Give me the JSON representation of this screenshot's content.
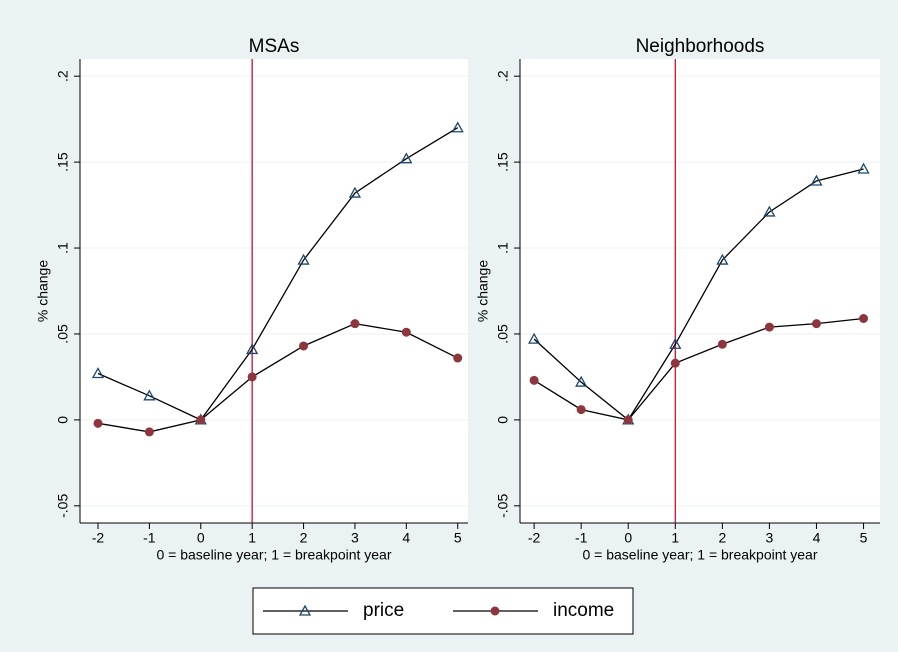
{
  "chart_data": [
    {
      "type": "line",
      "title": "MSAs",
      "x_label": "0 = baseline year; 1 = breakpoint year",
      "y_label": "% change",
      "x": [
        -2,
        -1,
        0,
        1,
        2,
        3,
        4,
        5
      ],
      "series": [
        {
          "name": "price",
          "color": "#1a476f",
          "marker": "triangle",
          "values": [
            0.027,
            0.014,
            0,
            0.041,
            0.093,
            0.132,
            0.152,
            0.17
          ]
        },
        {
          "name": "income",
          "color": "#90353b",
          "marker": "circle",
          "values": [
            -0.002,
            -0.007,
            0,
            0.025,
            0.043,
            0.056,
            0.051,
            0.036
          ]
        }
      ],
      "xlim": [
        -2.35,
        5.2
      ],
      "xticks": [
        -2,
        -1,
        0,
        1,
        2,
        3,
        4,
        5
      ],
      "ylim": [
        -0.06,
        0.21
      ],
      "yticks": [
        {
          "value": -0.05,
          "label": "-.05"
        },
        0,
        {
          "value": 0.05,
          "label": ".05"
        },
        {
          "value": 0.1,
          "label": ".1"
        },
        {
          "value": 0.15,
          "label": ".15"
        },
        {
          "value": 0.2,
          "label": ".2"
        }
      ],
      "reference_line_x": 1,
      "reference_line_color": "#c8102e",
      "grid": true
    },
    {
      "type": "line",
      "title": "Neighborhoods",
      "x_label": "0 = baseline year; 1 = breakpoint year",
      "y_label": "% change",
      "x": [
        -2,
        -1,
        0,
        1,
        2,
        3,
        4,
        5
      ],
      "series": [
        {
          "name": "price",
          "color": "#1a476f",
          "marker": "triangle",
          "values": [
            0.047,
            0.022,
            0,
            0.044,
            0.093,
            0.121,
            0.139,
            0.146
          ]
        },
        {
          "name": "income",
          "color": "#90353b",
          "marker": "circle",
          "values": [
            0.023,
            0.006,
            0,
            0.033,
            0.044,
            0.054,
            0.056,
            0.059
          ]
        }
      ],
      "xlim": [
        -2.3,
        5.35
      ],
      "xticks": [
        -2,
        -1,
        0,
        1,
        2,
        3,
        4,
        5
      ],
      "ylim": [
        -0.06,
        0.21
      ],
      "yticks": [
        {
          "value": -0.05,
          "label": "-.05"
        },
        0,
        {
          "value": 0.05,
          "label": ".05"
        },
        {
          "value": 0.1,
          "label": ".1"
        },
        {
          "value": 0.15,
          "label": ".15"
        },
        {
          "value": 0.2,
          "label": ".2"
        }
      ],
      "reference_line_x": 1,
      "reference_line_color": "#c8102e",
      "grid": true
    }
  ]
}
